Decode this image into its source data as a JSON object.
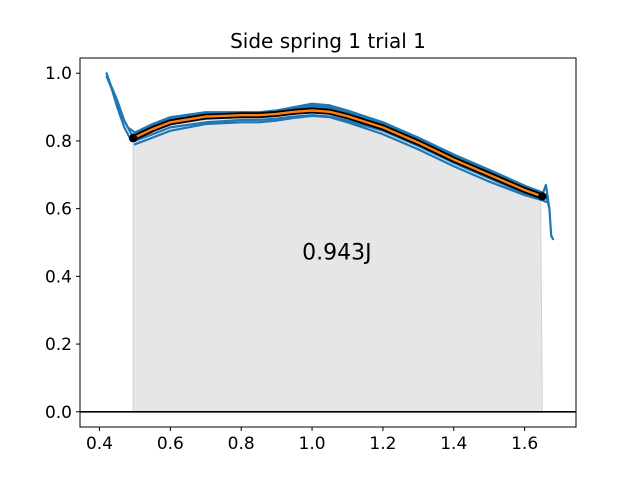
{
  "chart_data": {
    "type": "line",
    "title": "Side spring 1 trial 1",
    "xlabel": "",
    "ylabel": "",
    "xlim": [
      0.345,
      1.745
    ],
    "ylim": [
      -0.045,
      1.045
    ],
    "xticks": [
      0.4,
      0.6,
      0.8,
      1.0,
      1.2,
      1.4,
      1.6
    ],
    "xtick_labels": [
      "0.4",
      "0.6",
      "0.8",
      "1.0",
      "1.2",
      "1.4",
      "1.6"
    ],
    "yticks": [
      0.0,
      0.2,
      0.4,
      0.6,
      0.8,
      1.0
    ],
    "ytick_labels": [
      "0.0",
      "0.2",
      "0.4",
      "0.6",
      "0.8",
      "1.0"
    ],
    "grid": false,
    "annotation": {
      "text": "0.943J",
      "x": 1.07,
      "y": 0.45
    },
    "shaded_region": {
      "x_start": 0.495,
      "x_end": 1.65,
      "color": "#e6e6e6",
      "edge_color": "#d0d0d0"
    },
    "reference_line": {
      "y": 0.0,
      "color": "#000000"
    },
    "series": [
      {
        "role": "trials",
        "color": "#1f77b4",
        "traces": [
          {
            "x": [
              0.42,
              0.43,
              0.45,
              0.47,
              0.49,
              0.5,
              0.55,
              0.6,
              0.7,
              0.8,
              0.85,
              0.9,
              0.95,
              1.0,
              1.05,
              1.1,
              1.2,
              1.3,
              1.4,
              1.5,
              1.6,
              1.65,
              1.66,
              1.67,
              1.675,
              1.68
            ],
            "y": [
              1.0,
              0.97,
              0.92,
              0.86,
              0.82,
              0.82,
              0.845,
              0.865,
              0.88,
              0.882,
              0.88,
              0.885,
              0.893,
              0.9,
              0.898,
              0.885,
              0.85,
              0.8,
              0.745,
              0.7,
              0.655,
              0.64,
              0.67,
              0.6,
              0.52,
              0.51
            ]
          },
          {
            "x": [
              0.42,
              0.44,
              0.46,
              0.48,
              0.5,
              0.55,
              0.6,
              0.7,
              0.8,
              0.85,
              0.9,
              0.95,
              1.0,
              1.05,
              1.1,
              1.2,
              1.3,
              1.4,
              1.5,
              1.6,
              1.65,
              1.66,
              1.67
            ],
            "y": [
              0.99,
              0.94,
              0.88,
              0.84,
              0.825,
              0.85,
              0.87,
              0.885,
              0.885,
              0.885,
              0.89,
              0.9,
              0.91,
              0.905,
              0.89,
              0.855,
              0.805,
              0.755,
              0.71,
              0.665,
              0.645,
              0.64,
              0.6
            ]
          },
          {
            "x": [
              0.43,
              0.45,
              0.47,
              0.49,
              0.5,
              0.55,
              0.6,
              0.7,
              0.8,
              0.85,
              0.9,
              0.95,
              1.0,
              1.05,
              1.1,
              1.2,
              1.3,
              1.4,
              1.5,
              1.6,
              1.65,
              1.66
            ],
            "y": [
              0.97,
              0.9,
              0.84,
              0.8,
              0.8,
              0.82,
              0.84,
              0.855,
              0.862,
              0.862,
              0.866,
              0.872,
              0.876,
              0.872,
              0.86,
              0.83,
              0.785,
              0.735,
              0.69,
              0.645,
              0.625,
              0.62
            ]
          },
          {
            "x": [
              0.5,
              0.55,
              0.6,
              0.7,
              0.8,
              0.85,
              0.9,
              0.95,
              1.0,
              1.05,
              1.1,
              1.2,
              1.3,
              1.4,
              1.5,
              1.6,
              1.65
            ],
            "y": [
              0.79,
              0.81,
              0.83,
              0.85,
              0.855,
              0.855,
              0.86,
              0.868,
              0.874,
              0.87,
              0.855,
              0.82,
              0.775,
              0.725,
              0.68,
              0.64,
              0.625
            ]
          },
          {
            "x": [
              0.5,
              0.55,
              0.6,
              0.7,
              0.8,
              0.85,
              0.9,
              0.95,
              1.0,
              1.05,
              1.1,
              1.2,
              1.3,
              1.4,
              1.5,
              1.6,
              1.65
            ],
            "y": [
              0.815,
              0.84,
              0.862,
              0.88,
              0.885,
              0.884,
              0.889,
              0.897,
              0.905,
              0.9,
              0.888,
              0.855,
              0.81,
              0.76,
              0.715,
              0.668,
              0.648
            ]
          }
        ]
      },
      {
        "role": "mean",
        "outline_color": "#000000",
        "color": "#ff7f0e",
        "x": [
          0.495,
          0.55,
          0.6,
          0.7,
          0.8,
          0.85,
          0.9,
          0.95,
          1.0,
          1.05,
          1.1,
          1.2,
          1.3,
          1.4,
          1.5,
          1.6,
          1.65
        ],
        "y": [
          0.808,
          0.835,
          0.855,
          0.872,
          0.876,
          0.876,
          0.88,
          0.886,
          0.89,
          0.886,
          0.873,
          0.84,
          0.795,
          0.745,
          0.7,
          0.655,
          0.636
        ]
      }
    ]
  }
}
